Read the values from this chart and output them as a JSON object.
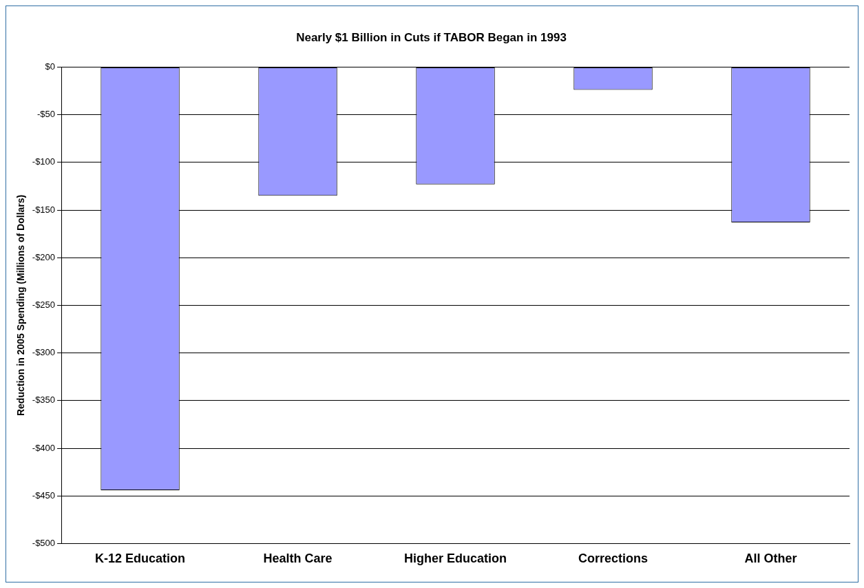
{
  "chart_data": {
    "type": "bar",
    "title": "Nearly $1 Billion in Cuts if TABOR Began in 1993",
    "ylabel": "Reduction in 2005 Spending (Millions of Dollars)",
    "categories": [
      "K-12 Education",
      "Health Care",
      "Higher Education",
      "Corrections",
      "All Other"
    ],
    "values": [
      -444,
      -135,
      -123,
      -24,
      -163
    ],
    "color": "#9999ff",
    "ylim": [
      -500,
      0
    ],
    "yticks": [
      {
        "value": -500,
        "label": "-$500"
      },
      {
        "value": -450,
        "label": "-$450"
      },
      {
        "value": -400,
        "label": "-$400"
      },
      {
        "value": -350,
        "label": "-$350"
      },
      {
        "value": -300,
        "label": "-$300"
      },
      {
        "value": -250,
        "label": "-$250"
      },
      {
        "value": -200,
        "label": "-$200"
      },
      {
        "value": -150,
        "label": "-$150"
      },
      {
        "value": -100,
        "label": "-$100"
      },
      {
        "value": -50,
        "label": "-$50"
      },
      {
        "value": 0,
        "label": "$0"
      }
    ],
    "grid": "y",
    "legend": false
  }
}
